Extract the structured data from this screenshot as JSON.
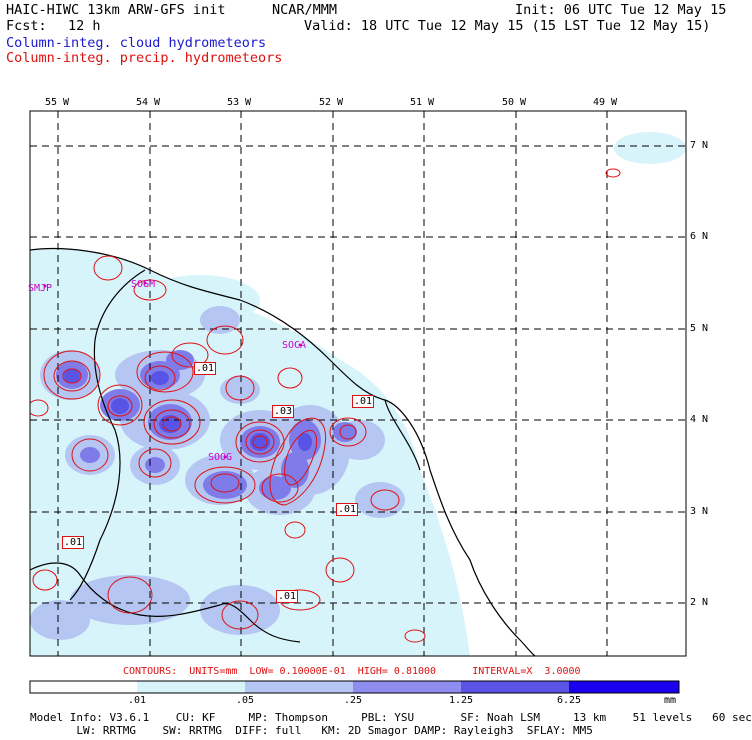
{
  "header": {
    "model_title": "HAIC-HIWC 13km ARW-GFS init",
    "org": "NCAR/MMM",
    "init": "Init: 06 UTC Tue 12 May 15",
    "fcst_label": "Fcst:",
    "fcst_value": "12 h",
    "valid": "Valid: 18 UTC Tue 12 May 15 (15 LST Tue 12 May 15)",
    "field1": "Column-integ. cloud hydrometeors",
    "field2": "Column-integ. precip. hydrometeors"
  },
  "map": {
    "lon_labels": [
      "55 W",
      "54 W",
      "53 W",
      "52 W",
      "51 W",
      "50 W",
      "49 W"
    ],
    "lat_labels": [
      "7 N",
      "6 N",
      "5 N",
      "4 N",
      "3 N",
      "2 N"
    ],
    "stations": [
      "SMJP",
      "SOGM",
      "SOCA",
      "SOOG"
    ],
    "contour_labels": [
      ".01",
      ".01",
      ".03",
      ".01",
      ".01",
      ".01"
    ]
  },
  "contour_line": "CONTOURS:  UNITS=mm  LOW= 0.10000E-01  HIGH= 0.81000      INTERVAL=X  3.0000",
  "colorbar": {
    "ticks": [
      ".01",
      ".05",
      ".25",
      "1.25",
      "6.25"
    ],
    "units": "mm",
    "colors": [
      "#ffffff",
      "#d8f4fb",
      "#b5c6f3",
      "#8f8ef0",
      "#5a54e6",
      "#2a1fe0",
      "#1a00ee"
    ]
  },
  "footer": {
    "line1": "Model Info: V3.6.1    CU: KF     MP: Thompson     PBL: YSU       SF: Noah LSM     13 km    51 levels   60 sec",
    "line2": "       LW: RRTMG    SW: RRTMG  DIFF: full   KM: 2D Smagor DAMP: Rayleigh3  SFLAY: MM5"
  }
}
